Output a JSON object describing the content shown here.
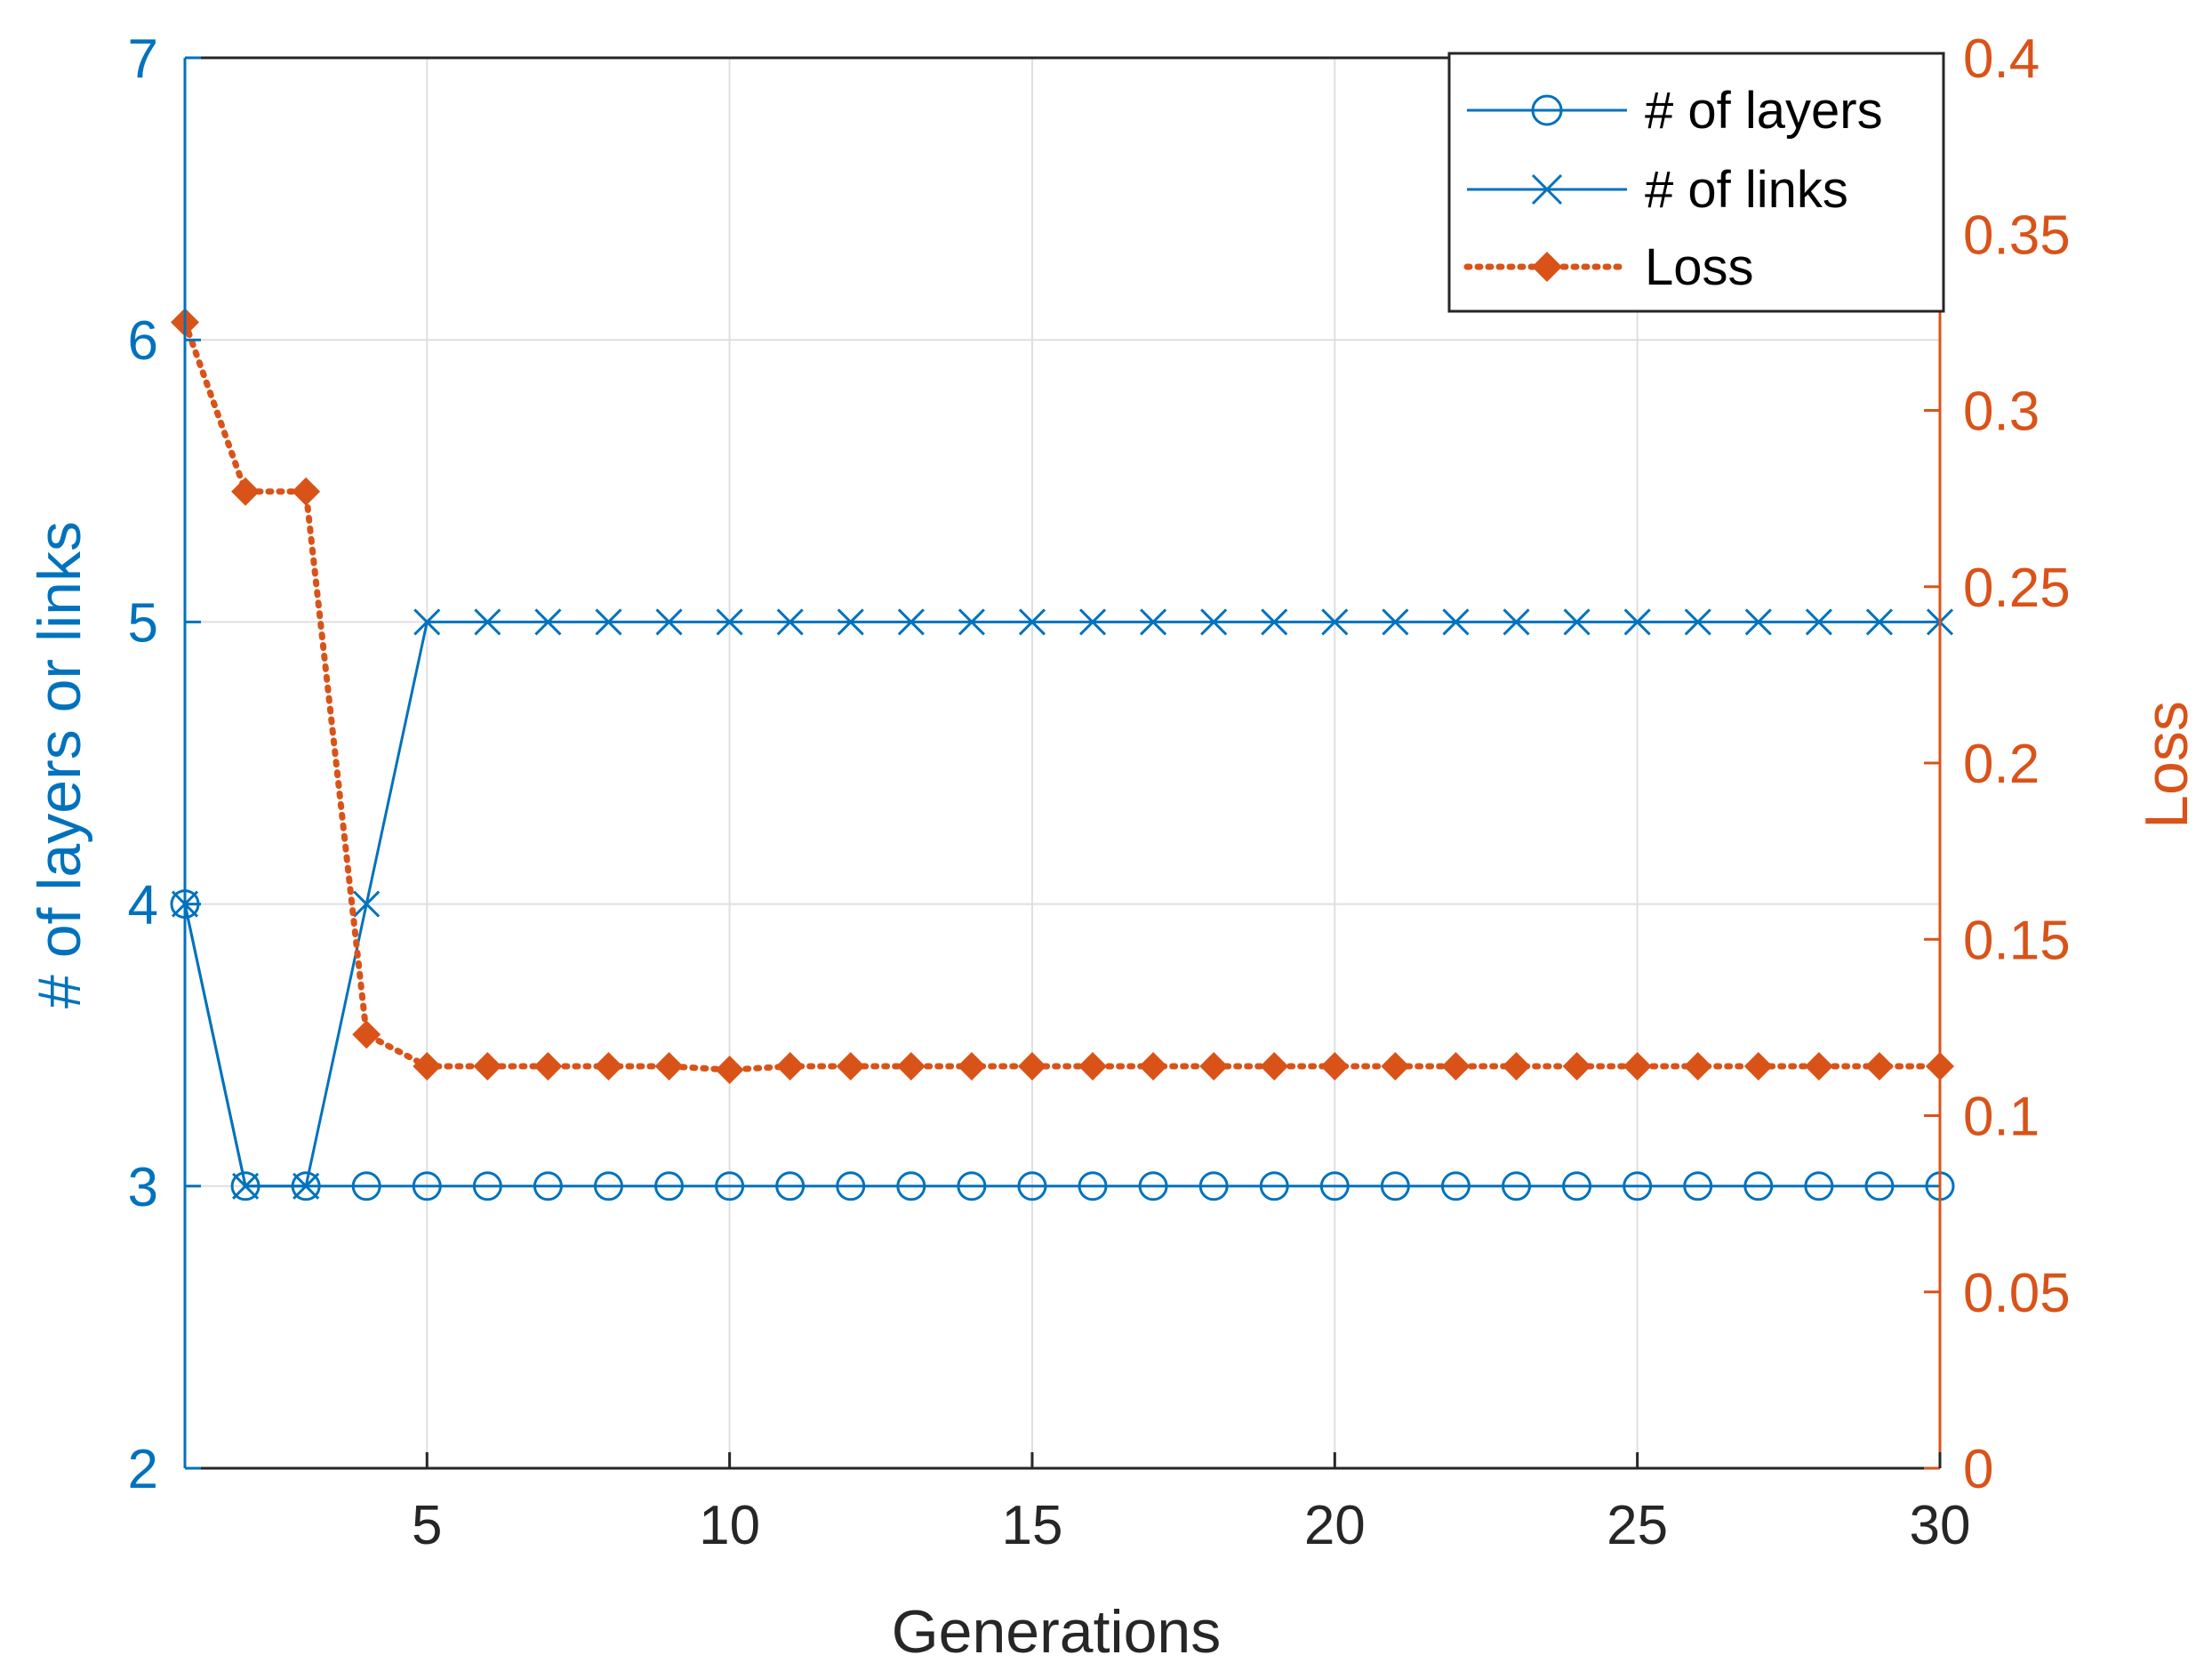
{
  "chart_data": {
    "type": "line",
    "x": [
      1,
      2,
      3,
      4,
      5,
      6,
      7,
      8,
      9,
      10,
      11,
      12,
      13,
      14,
      15,
      16,
      17,
      18,
      19,
      20,
      21,
      22,
      23,
      24,
      25,
      26,
      27,
      28,
      29,
      30
    ],
    "xlim": [
      1,
      30
    ],
    "xticks": [
      5,
      10,
      15,
      20,
      25,
      30
    ],
    "xlabel": "Generations",
    "ylabel_left": "# of layers or links",
    "ylim_left": [
      2,
      7
    ],
    "yticks_left": [
      2,
      3,
      4,
      5,
      6,
      7
    ],
    "ylabel_right": "Loss",
    "ylim_right": [
      0,
      0.4
    ],
    "yticks_right": [
      "0",
      "0.05",
      "0.1",
      "0.15",
      "0.2",
      "0.25",
      "0.3",
      "0.35",
      "0.4"
    ],
    "grid": true,
    "legend_position": "top-right",
    "series": [
      {
        "name": "# of layers",
        "axis": "left",
        "marker": "circle",
        "line_style": "solid",
        "color": "#0072BD",
        "values": [
          4,
          3,
          3,
          3,
          3,
          3,
          3,
          3,
          3,
          3,
          3,
          3,
          3,
          3,
          3,
          3,
          3,
          3,
          3,
          3,
          3,
          3,
          3,
          3,
          3,
          3,
          3,
          3,
          3,
          3
        ]
      },
      {
        "name": "# of links",
        "axis": "left",
        "marker": "x",
        "line_style": "solid",
        "color": "#0072BD",
        "values": [
          4,
          3,
          3,
          4,
          5,
          5,
          5,
          5,
          5,
          5,
          5,
          5,
          5,
          5,
          5,
          5,
          5,
          5,
          5,
          5,
          5,
          5,
          5,
          5,
          5,
          5,
          5,
          5,
          5,
          5
        ]
      },
      {
        "name": "Loss",
        "axis": "right",
        "marker": "filled-diamond",
        "line_style": "dotted",
        "color": "#D95319",
        "values": [
          0.325,
          0.277,
          0.277,
          0.123,
          0.114,
          0.114,
          0.114,
          0.114,
          0.114,
          0.113,
          0.114,
          0.114,
          0.114,
          0.114,
          0.114,
          0.114,
          0.114,
          0.114,
          0.114,
          0.114,
          0.114,
          0.114,
          0.114,
          0.114,
          0.114,
          0.114,
          0.114,
          0.114,
          0.114,
          0.114
        ]
      }
    ]
  },
  "colors": {
    "left_axis": "#0072BD",
    "right_axis": "#D95319",
    "grid": "#DFDFDF",
    "legend_border": "#262626"
  }
}
